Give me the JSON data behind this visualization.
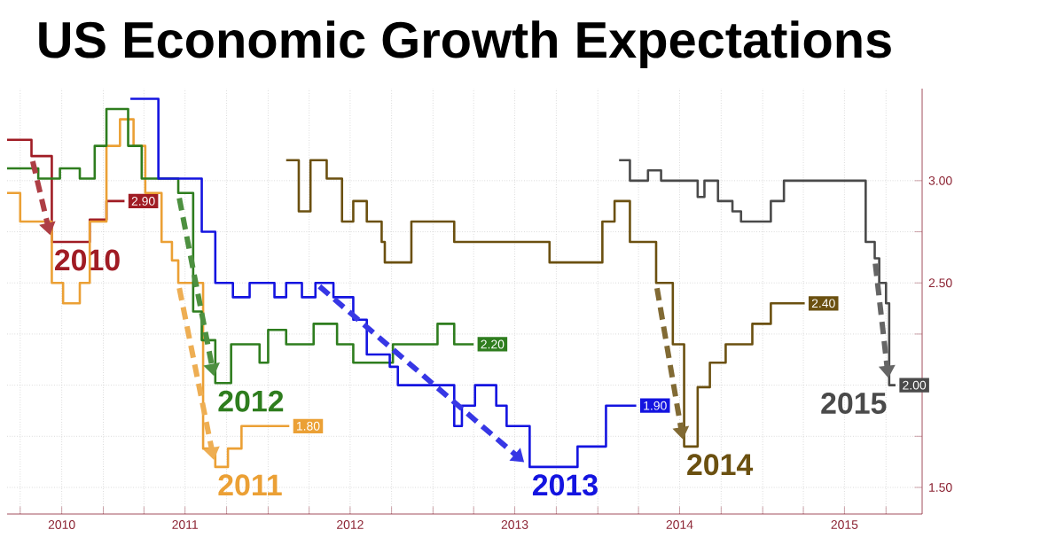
{
  "chart_data": {
    "type": "step",
    "title": "US Economic Growth Expectations",
    "xlim": [
      "2010-06-02",
      "2015-12-20"
    ],
    "ylim": [
      1.37,
      3.45
    ],
    "grid": true,
    "xticks": [
      {
        "value": "2010-07-01",
        "label": null
      },
      {
        "value": "2010-10-01",
        "label": "2010"
      },
      {
        "value": "2011-01-01",
        "label": null
      },
      {
        "value": "2011-04-01",
        "label": null
      },
      {
        "value": "2011-07-01",
        "label": "2011"
      },
      {
        "value": "2011-10-01",
        "label": null
      },
      {
        "value": "2012-01-01",
        "label": null
      },
      {
        "value": "2012-04-01",
        "label": null
      },
      {
        "value": "2012-07-01",
        "label": "2012"
      },
      {
        "value": "2012-10-01",
        "label": null
      },
      {
        "value": "2013-01-01",
        "label": null
      },
      {
        "value": "2013-04-01",
        "label": null
      },
      {
        "value": "2013-07-01",
        "label": "2013"
      },
      {
        "value": "2013-10-01",
        "label": null
      },
      {
        "value": "2014-01-01",
        "label": null
      },
      {
        "value": "2014-04-01",
        "label": null
      },
      {
        "value": "2014-07-01",
        "label": "2014"
      },
      {
        "value": "2014-10-01",
        "label": null
      },
      {
        "value": "2015-01-01",
        "label": null
      },
      {
        "value": "2015-04-01",
        "label": null
      },
      {
        "value": "2015-07-01",
        "label": "2015"
      },
      {
        "value": "2015-10-01",
        "label": null
      }
    ],
    "yticks": [
      {
        "value": 1.5,
        "label": "1.50"
      },
      {
        "value": 1.75,
        "label": null
      },
      {
        "value": 2,
        "label": null
      },
      {
        "value": 2.25,
        "label": null
      },
      {
        "value": 2.5,
        "label": "2.50"
      },
      {
        "value": 2.75,
        "label": null
      },
      {
        "value": 3,
        "label": "3.00"
      }
    ],
    "series": [
      {
        "name": "2010",
        "color": "#a01c24",
        "x": [
          "2010-06-02",
          "2010-07-26",
          "2010-09-09",
          "2010-12-02",
          "2011-01-08",
          "2011-02-17"
        ],
        "values": [
          3.2,
          3.12,
          2.7,
          2.81,
          2.9,
          2.9
        ],
        "value_labels": [
          null,
          null,
          null,
          null,
          null,
          "2.90"
        ]
      },
      {
        "name": "2011",
        "color": "#eba035",
        "x": [
          "2010-06-02",
          "2010-07-01",
          "2010-09-09",
          "2010-10-04",
          "2010-11-10",
          "2010-12-02",
          "2011-01-08",
          "2011-02-07",
          "2011-03-09",
          "2011-04-04",
          "2011-05-10",
          "2011-06-02",
          "2011-06-16",
          "2011-08-10",
          "2011-09-06",
          "2011-10-04",
          "2011-11-03",
          "2012-02-17"
        ],
        "values": [
          2.94,
          2.8,
          2.5,
          2.4,
          2.5,
          2.8,
          3.17,
          3.3,
          3.17,
          2.94,
          2.7,
          2.61,
          2.5,
          1.69,
          1.6,
          1.69,
          1.8,
          1.8
        ],
        "value_labels": [
          null,
          null,
          null,
          null,
          null,
          null,
          null,
          null,
          null,
          null,
          null,
          null,
          null,
          null,
          null,
          null,
          null,
          "1.80"
        ]
      },
      {
        "name": "2012",
        "color": "#2e7d1e",
        "x": [
          "2010-06-02",
          "2010-08-10",
          "2010-09-27",
          "2010-11-10",
          "2010-12-13",
          "2011-01-08",
          "2011-02-25",
          "2011-03-27",
          "2011-06-16",
          "2011-07-19",
          "2011-08-07",
          "2011-09-06",
          "2011-10-11",
          "2011-12-13",
          "2012-01-01",
          "2012-02-10",
          "2012-04-11",
          "2012-06-02",
          "2012-07-08",
          "2012-10-04",
          "2013-01-11",
          "2013-02-17",
          "2013-04-01"
        ],
        "values": [
          3.06,
          3.01,
          3.06,
          3.01,
          3.17,
          3.35,
          3.17,
          3.01,
          2.94,
          2.36,
          2.22,
          2.01,
          2.2,
          2.11,
          2.27,
          2.2,
          2.3,
          2.2,
          2.11,
          2.2,
          2.3,
          2.2,
          2.2
        ],
        "value_labels": [
          null,
          null,
          null,
          null,
          null,
          null,
          null,
          null,
          null,
          null,
          null,
          null,
          null,
          null,
          null,
          null,
          null,
          null,
          null,
          null,
          null,
          null,
          "2.20"
        ]
      },
      {
        "name": "2013",
        "color": "#1414e0",
        "x": [
          "2011-03-02",
          "2011-05-03",
          "2011-08-07",
          "2011-09-06",
          "2011-10-15",
          "2011-11-21",
          "2012-01-15",
          "2012-02-10",
          "2012-03-16",
          "2012-04-15",
          "2012-05-25",
          "2012-07-08",
          "2012-08-07",
          "2012-09-27",
          "2012-10-15",
          "2013-02-17",
          "2013-03-06",
          "2013-04-04",
          "2013-05-21",
          "2013-06-13",
          "2013-08-03",
          "2013-11-17",
          "2014-01-19",
          "2014-03-27"
        ],
        "values": [
          3.4,
          3.01,
          2.75,
          2.5,
          2.43,
          2.5,
          2.43,
          2.5,
          2.43,
          2.5,
          2.43,
          2.32,
          2.15,
          2.09,
          2.0,
          1.8,
          1.9,
          2.0,
          1.9,
          1.8,
          1.6,
          1.7,
          1.9,
          1.9
        ],
        "value_labels": [
          null,
          null,
          null,
          null,
          null,
          null,
          null,
          null,
          null,
          null,
          null,
          null,
          null,
          null,
          null,
          null,
          null,
          null,
          null,
          null,
          null,
          null,
          null,
          "1.90"
        ]
      },
      {
        "name": "2014",
        "color": "#6b5010",
        "x": [
          "2012-02-10",
          "2012-03-09",
          "2012-04-04",
          "2012-05-10",
          "2012-06-13",
          "2012-07-08",
          "2012-08-07",
          "2012-09-09",
          "2012-09-16",
          "2012-11-14",
          "2013-02-17",
          "2013-09-16",
          "2014-01-11",
          "2014-02-07",
          "2014-03-13",
          "2014-05-10",
          "2014-06-16",
          "2014-07-11",
          "2014-08-10",
          "2014-09-06",
          "2014-10-11",
          "2014-12-09",
          "2015-01-19",
          "2015-04-04"
        ],
        "values": [
          3.1,
          2.85,
          3.1,
          3.01,
          2.8,
          2.9,
          2.8,
          2.7,
          2.6,
          2.8,
          2.7,
          2.6,
          2.8,
          2.9,
          2.7,
          2.5,
          2.2,
          1.7,
          1.99,
          2.11,
          2.2,
          2.3,
          2.4,
          2.4
        ],
        "value_labels": [
          null,
          null,
          null,
          null,
          null,
          null,
          null,
          null,
          null,
          null,
          null,
          null,
          null,
          null,
          null,
          null,
          null,
          null,
          null,
          null,
          null,
          null,
          null,
          "2.40"
        ]
      },
      {
        "name": "2015",
        "color": "#4a4a4a",
        "x": [
          "2014-02-17",
          "2014-03-13",
          "2014-04-22",
          "2014-05-21",
          "2014-08-10",
          "2014-08-25",
          "2014-09-24",
          "2014-10-26",
          "2014-11-14",
          "2015-01-19",
          "2015-02-17",
          "2015-08-17",
          "2015-09-06",
          "2015-09-16",
          "2015-10-01",
          "2015-10-08",
          "2015-10-22"
        ],
        "values": [
          3.1,
          3.0,
          3.05,
          3.0,
          2.92,
          3.0,
          2.9,
          2.85,
          2.8,
          2.9,
          3.0,
          2.7,
          2.62,
          2.5,
          2.4,
          2.0,
          2.0
        ],
        "value_labels": [
          null,
          null,
          null,
          null,
          null,
          null,
          null,
          null,
          null,
          null,
          null,
          null,
          null,
          null,
          null,
          null,
          "2.00"
        ]
      }
    ]
  }
}
